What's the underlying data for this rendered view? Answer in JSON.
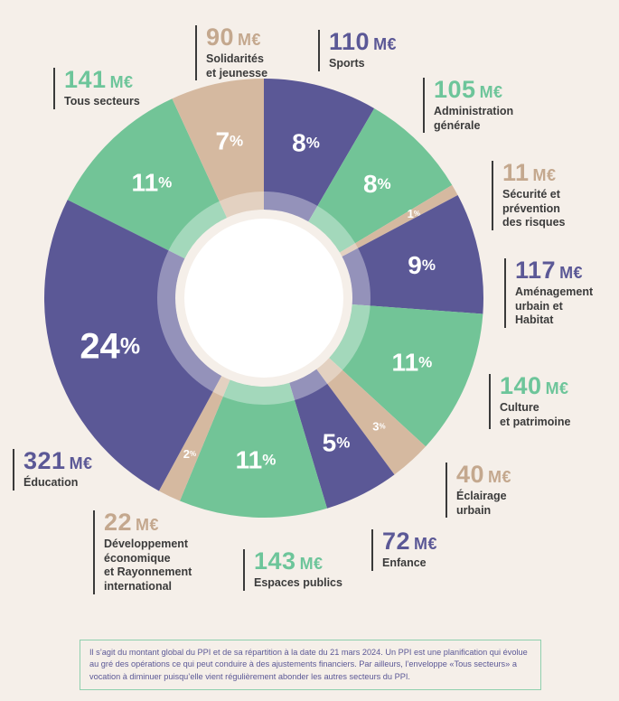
{
  "colors": {
    "purple": "#5b5896",
    "green": "#72c497",
    "tan": "#d5b9a0",
    "background": "#f5efe9"
  },
  "chart_data": {
    "type": "pie",
    "variant": "donut",
    "unit": "M€",
    "slices": [
      {
        "label": "Sports",
        "amount": "110",
        "percent": 8,
        "color": "purple"
      },
      {
        "label": "Administration\ngénérale",
        "amount": "105",
        "percent": 8,
        "color": "green"
      },
      {
        "label": "Sécurité et\nprévention\ndes risques",
        "amount": "11",
        "percent": 1,
        "color": "tan"
      },
      {
        "label": "Aménagement\nurbain et\nHabitat",
        "amount": "117",
        "percent": 9,
        "color": "purple"
      },
      {
        "label": "Culture\net patrimoine",
        "amount": "140",
        "percent": 11,
        "color": "green"
      },
      {
        "label": "Éclairage\nurbain",
        "amount": "40",
        "percent": 3,
        "color": "tan"
      },
      {
        "label": "Enfance",
        "amount": "72",
        "percent": 5,
        "color": "purple"
      },
      {
        "label": "Espaces publics",
        "amount": "143",
        "percent": 11,
        "color": "green"
      },
      {
        "label": "Développement\néconomique\net Rayonnement\ninternational",
        "amount": "22",
        "percent": 2,
        "color": "tan"
      },
      {
        "label": "Éducation",
        "amount": "321",
        "percent": 24,
        "color": "purple"
      },
      {
        "label": "Tous secteurs",
        "amount": "141",
        "percent": 11,
        "color": "green"
      },
      {
        "label": "Solidarités\net jeunesse",
        "amount": "90",
        "percent": 7,
        "color": "tan"
      }
    ]
  },
  "note": "Il s’agit du montant global du PPI et de sa répartition à la date du 21 mars 2024. Un PPI est une planification qui évolue au gré des opérations ce qui peut conduire à des ajustements financiers. Par ailleurs, l’enveloppe «Tous secteurs» a vocation à diminuer puisqu’elle vient régulièrement abonder les autres secteurs du PPI."
}
